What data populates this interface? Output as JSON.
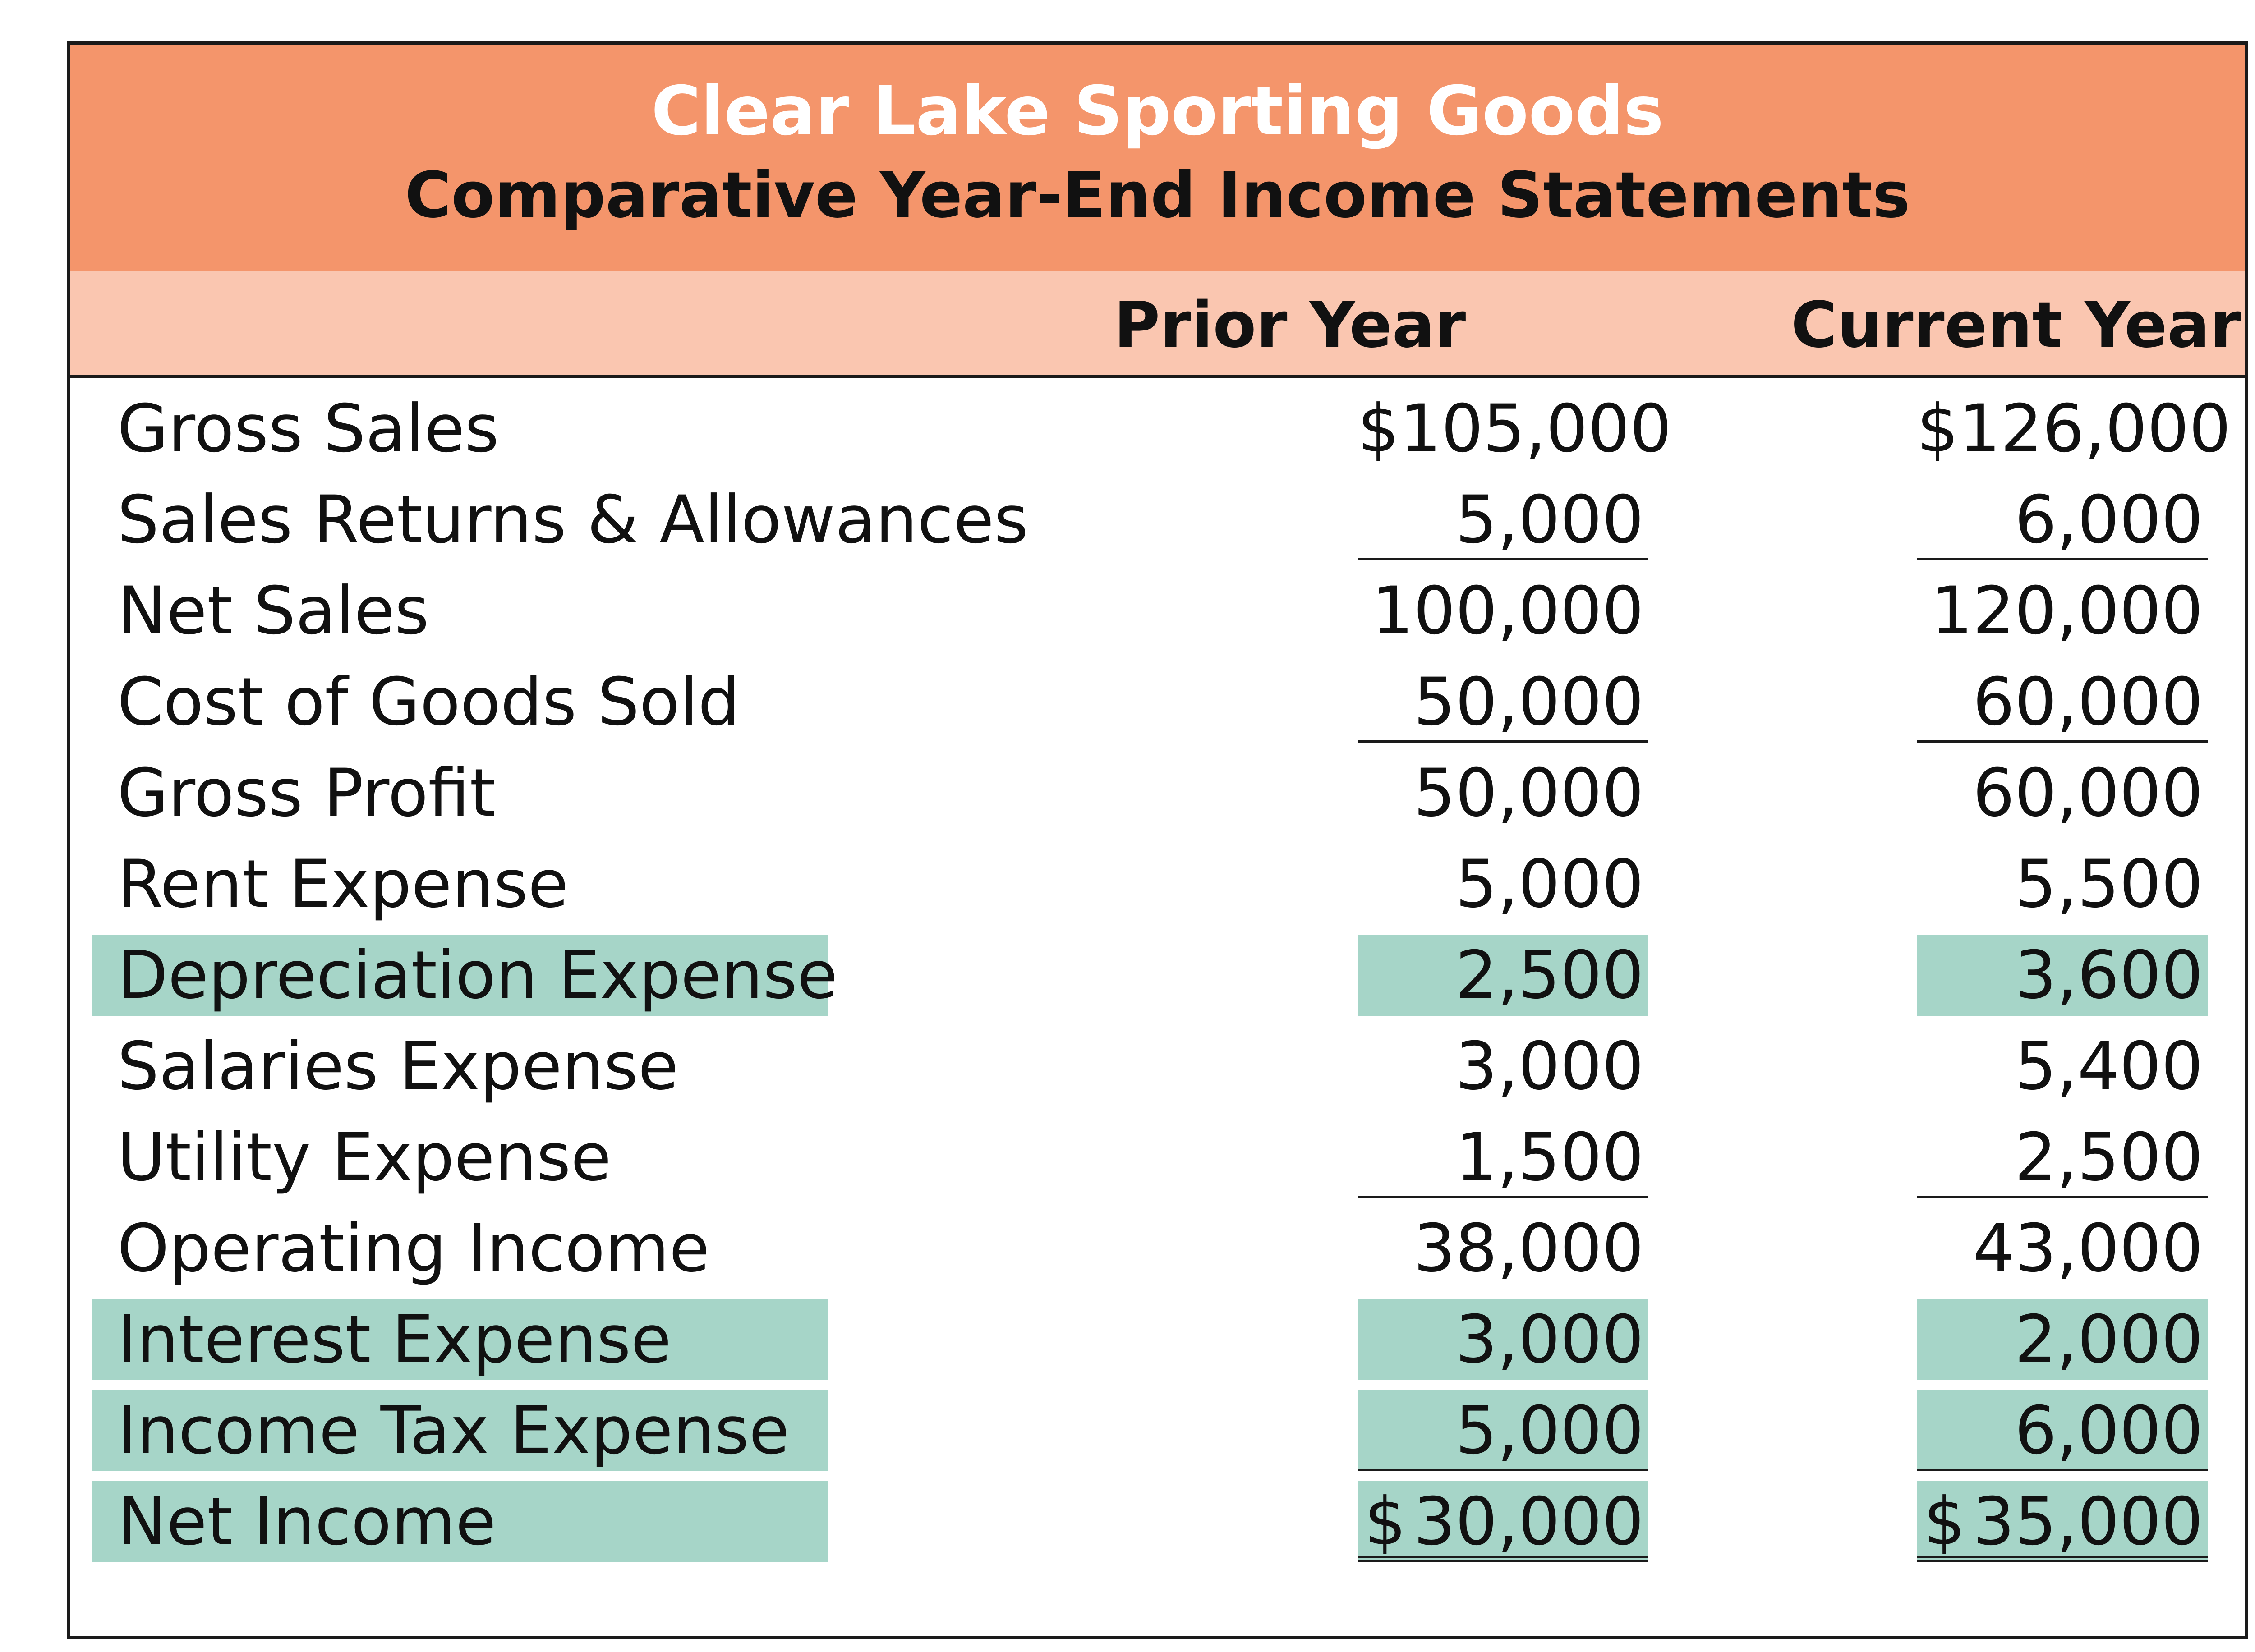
{
  "report": {
    "company": "Clear Lake Sporting Goods",
    "title": "Comparative Year-End Income Statements"
  },
  "columns": {
    "prior": "Prior Year",
    "current": "Current Year"
  },
  "rows": [
    {
      "label": "Gross Sales",
      "prior": "$105,000",
      "current": "$126,000",
      "highlight": false,
      "rule": "none"
    },
    {
      "label": "Sales Returns & Allowances",
      "prior": "5,000",
      "current": "6,000",
      "highlight": false,
      "rule": "single"
    },
    {
      "label": "Net Sales",
      "prior": "100,000",
      "current": "120,000",
      "highlight": false,
      "rule": "none"
    },
    {
      "label": "Cost of Goods Sold",
      "prior": "50,000",
      "current": "60,000",
      "highlight": false,
      "rule": "single"
    },
    {
      "label": "Gross Profit",
      "prior": "50,000",
      "current": "60,000",
      "highlight": false,
      "rule": "none"
    },
    {
      "label": "Rent Expense",
      "prior": "5,000",
      "current": "5,500",
      "highlight": false,
      "rule": "none"
    },
    {
      "label": "Depreciation Expense",
      "prior": "2,500",
      "current": "3,600",
      "highlight": true,
      "rule": "none"
    },
    {
      "label": "Salaries Expense",
      "prior": "3,000",
      "current": "5,400",
      "highlight": false,
      "rule": "none"
    },
    {
      "label": "Utility Expense",
      "prior": "1,500",
      "current": "2,500",
      "highlight": false,
      "rule": "single"
    },
    {
      "label": "Operating Income",
      "prior": "38,000",
      "current": "43,000",
      "highlight": false,
      "rule": "none"
    },
    {
      "label": "Interest Expense",
      "prior": "3,000",
      "current": "2,000",
      "highlight": true,
      "rule": "none"
    },
    {
      "label": "Income Tax Expense",
      "prior": "5,000",
      "current": "6,000",
      "highlight": true,
      "rule": "single"
    },
    {
      "label": "Net Income",
      "prior_symbol": "$",
      "prior": "30,000",
      "current_symbol": "$",
      "current": "35,000",
      "highlight": true,
      "rule": "double"
    }
  ],
  "colors": {
    "title_band": "#f4956b",
    "header_band": "#fac6b0",
    "highlight": "#a6d5c8"
  }
}
